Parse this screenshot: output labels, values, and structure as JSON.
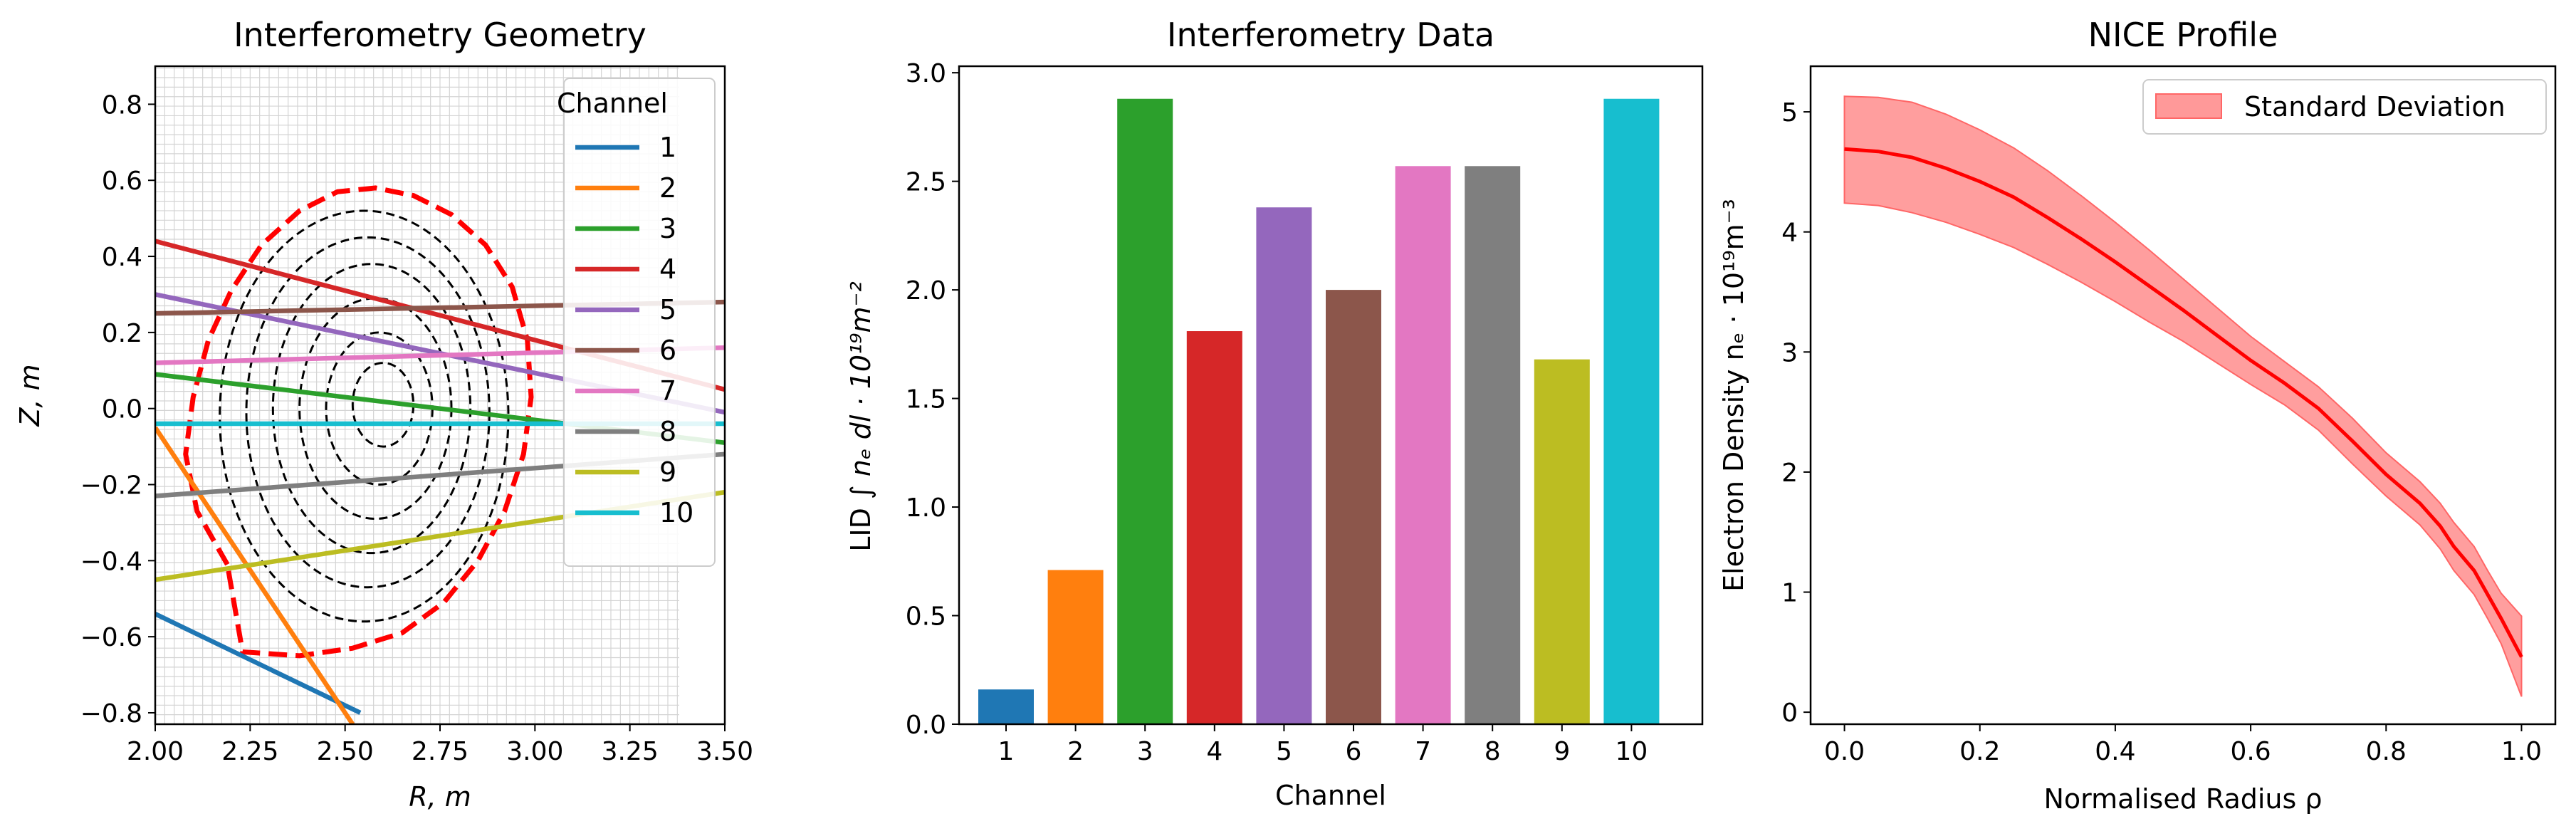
{
  "chart_data": [
    {
      "type": "line",
      "title": "Interferometry Geometry",
      "xlabel": "R, m",
      "ylabel": "Z, m",
      "xlim": [
        2.0,
        3.5
      ],
      "ylim": [
        -0.83,
        0.9
      ],
      "xticks": [
        "2.00",
        "2.25",
        "2.50",
        "2.75",
        "3.00",
        "3.25",
        "3.50"
      ],
      "yticks": [
        "−0.8",
        "−0.6",
        "−0.4",
        "−0.2",
        "0.0",
        "0.2",
        "0.4",
        "0.6",
        "0.8"
      ],
      "grid": true,
      "grid_extent": {
        "r": [
          2.0,
          3.38
        ],
        "z": [
          -0.83,
          0.9
        ]
      },
      "legend_title": "Channel",
      "legend_position": "upper right",
      "separatrix": {
        "style": "red dashed",
        "color": "#ff0000",
        "r": [
          2.19,
          2.11,
          2.08,
          2.1,
          2.14,
          2.2,
          2.28,
          2.38,
          2.48,
          2.58,
          2.68,
          2.78,
          2.87,
          2.94,
          2.98,
          2.99,
          2.97,
          2.92,
          2.85,
          2.76,
          2.65,
          2.52,
          2.38,
          2.23,
          2.19
        ],
        "z": [
          -0.41,
          -0.27,
          -0.12,
          0.03,
          0.18,
          0.31,
          0.43,
          0.52,
          0.57,
          0.58,
          0.56,
          0.51,
          0.43,
          0.32,
          0.18,
          0.03,
          -0.12,
          -0.27,
          -0.4,
          -0.51,
          -0.59,
          -0.63,
          -0.65,
          -0.64,
          -0.41
        ]
      },
      "flux_surfaces": [
        {
          "rc": 2.55,
          "zc": -0.02,
          "ra": 0.38,
          "za": 0.54
        },
        {
          "rc": 2.56,
          "zc": -0.01,
          "ra": 0.32,
          "za": 0.46
        },
        {
          "rc": 2.57,
          "zc": 0.0,
          "ra": 0.26,
          "za": 0.38
        },
        {
          "rc": 2.58,
          "zc": 0.0,
          "ra": 0.2,
          "za": 0.29
        },
        {
          "rc": 2.59,
          "zc": 0.0,
          "ra": 0.14,
          "za": 0.2
        },
        {
          "rc": 2.6,
          "zc": 0.01,
          "ra": 0.08,
          "za": 0.11
        }
      ],
      "series": [
        {
          "name": "1",
          "color": "#1f77b4",
          "x": [
            2.0,
            2.54
          ],
          "y": [
            -0.54,
            -0.8
          ]
        },
        {
          "name": "2",
          "color": "#ff7f0e",
          "x": [
            2.0,
            2.52
          ],
          "y": [
            -0.05,
            -0.83
          ]
        },
        {
          "name": "3",
          "color": "#2ca02c",
          "x": [
            2.0,
            3.5
          ],
          "y": [
            0.09,
            -0.09
          ]
        },
        {
          "name": "4",
          "color": "#d62728",
          "x": [
            2.0,
            3.5
          ],
          "y": [
            0.44,
            0.05
          ]
        },
        {
          "name": "5",
          "color": "#9467bd",
          "x": [
            2.0,
            3.5
          ],
          "y": [
            0.3,
            -0.01
          ]
        },
        {
          "name": "6",
          "color": "#8c564b",
          "x": [
            2.0,
            3.5
          ],
          "y": [
            0.25,
            0.28
          ]
        },
        {
          "name": "7",
          "color": "#e377c2",
          "x": [
            2.0,
            3.5
          ],
          "y": [
            0.12,
            0.16
          ]
        },
        {
          "name": "8",
          "color": "#7f7f7f",
          "x": [
            2.0,
            3.5
          ],
          "y": [
            -0.23,
            -0.12
          ]
        },
        {
          "name": "9",
          "color": "#bcbd22",
          "x": [
            2.0,
            3.5
          ],
          "y": [
            -0.45,
            -0.22
          ]
        },
        {
          "name": "10",
          "color": "#17becf",
          "x": [
            2.0,
            3.5
          ],
          "y": [
            -0.04,
            -0.04
          ]
        }
      ]
    },
    {
      "type": "bar",
      "title": "Interferometry Data",
      "xlabel": "Channel",
      "ylabel_text": "LID",
      "ylabel_math": "∫ nₑ dl · 10¹⁹m⁻²",
      "categories": [
        "1",
        "2",
        "3",
        "4",
        "5",
        "6",
        "7",
        "8",
        "9",
        "10"
      ],
      "values": [
        0.16,
        0.71,
        2.88,
        1.81,
        2.38,
        2.0,
        2.57,
        2.57,
        1.68,
        2.88
      ],
      "colors": [
        "#1f77b4",
        "#ff7f0e",
        "#2ca02c",
        "#d62728",
        "#9467bd",
        "#8c564b",
        "#e377c2",
        "#7f7f7f",
        "#bcbd22",
        "#17becf"
      ],
      "ylim": [
        0,
        3.03
      ],
      "yticks": [
        "0.0",
        "0.5",
        "1.0",
        "1.5",
        "2.0",
        "2.5",
        "3.0"
      ]
    },
    {
      "type": "area",
      "title": "NICE Profile",
      "xlabel": "Normalised Radius ρ",
      "ylabel": "Electron Density nₑ · 10¹⁹m⁻³",
      "xlim": [
        -0.05,
        1.05
      ],
      "ylim": [
        -0.1,
        5.38
      ],
      "xticks": [
        "0.0",
        "0.2",
        "0.4",
        "0.6",
        "0.8",
        "1.0"
      ],
      "yticks": [
        "0",
        "1",
        "2",
        "3",
        "4",
        "5"
      ],
      "legend_position": "upper right",
      "legend": [
        "Standard Deviation"
      ],
      "line_color": "#ff0000",
      "band_color": "#ff9999",
      "x": [
        0.0,
        0.05,
        0.1,
        0.15,
        0.2,
        0.25,
        0.3,
        0.35,
        0.4,
        0.45,
        0.5,
        0.55,
        0.6,
        0.65,
        0.7,
        0.75,
        0.8,
        0.85,
        0.88,
        0.9,
        0.93,
        0.95,
        0.97,
        1.0
      ],
      "mean": [
        4.69,
        4.67,
        4.62,
        4.53,
        4.42,
        4.29,
        4.12,
        3.94,
        3.75,
        3.55,
        3.35,
        3.14,
        2.93,
        2.74,
        2.53,
        2.26,
        1.98,
        1.74,
        1.55,
        1.38,
        1.18,
        0.98,
        0.78,
        0.46
      ],
      "upper": [
        5.13,
        5.12,
        5.08,
        4.98,
        4.85,
        4.7,
        4.51,
        4.3,
        4.08,
        3.85,
        3.61,
        3.37,
        3.13,
        2.92,
        2.71,
        2.45,
        2.16,
        1.92,
        1.74,
        1.58,
        1.38,
        1.18,
        0.99,
        0.8
      ],
      "lower": [
        4.24,
        4.22,
        4.16,
        4.08,
        3.98,
        3.87,
        3.73,
        3.58,
        3.42,
        3.25,
        3.09,
        2.91,
        2.73,
        2.56,
        2.35,
        2.07,
        1.8,
        1.56,
        1.36,
        1.18,
        0.98,
        0.78,
        0.57,
        0.13
      ]
    }
  ]
}
